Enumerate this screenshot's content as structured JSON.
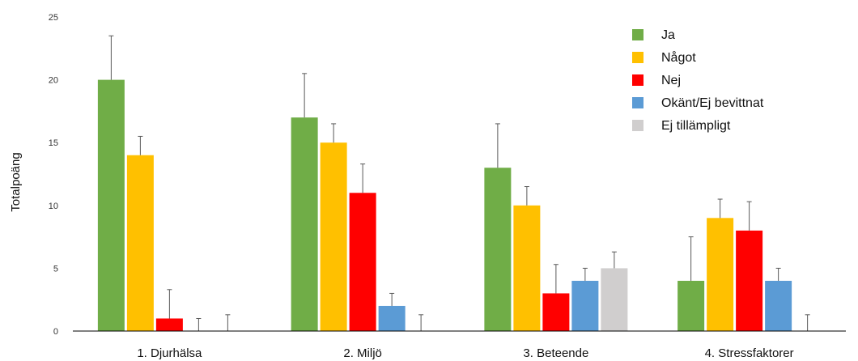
{
  "chart_data": {
    "type": "bar",
    "title": "",
    "xlabel": "",
    "ylabel": "Totalpoäng",
    "ylim": [
      0,
      25
    ],
    "yticks": [
      0,
      5,
      10,
      15,
      20,
      25
    ],
    "grid": false,
    "legend_position": "top-right",
    "categories": [
      "1. Djurhälsa",
      "2. Miljö",
      "3. Beteende",
      "4. Stressfaktorer"
    ],
    "series": [
      {
        "name": "Ja",
        "color": "#70AD47",
        "values": [
          20,
          17,
          13,
          4
        ],
        "error": [
          3.5,
          3.5,
          3.5,
          3.5
        ]
      },
      {
        "name": "Något",
        "color": "#FFC000",
        "values": [
          14,
          15,
          10,
          9
        ],
        "error": [
          1.5,
          1.5,
          1.5,
          1.5
        ]
      },
      {
        "name": "Nej",
        "color": "#FF0000",
        "values": [
          1,
          11,
          3,
          8
        ],
        "error": [
          2.3,
          2.3,
          2.3,
          2.3
        ]
      },
      {
        "name": "Okänt/Ej bevittnat",
        "color": "#5B9BD5",
        "values": [
          0,
          2,
          4,
          4
        ],
        "error": [
          1,
          1,
          1,
          1
        ]
      },
      {
        "name": "Ej tillämpligt",
        "color": "#D0CECE",
        "values": [
          0,
          0,
          5,
          0
        ],
        "error": [
          1.3,
          1.3,
          1.3,
          1.3
        ]
      }
    ]
  }
}
